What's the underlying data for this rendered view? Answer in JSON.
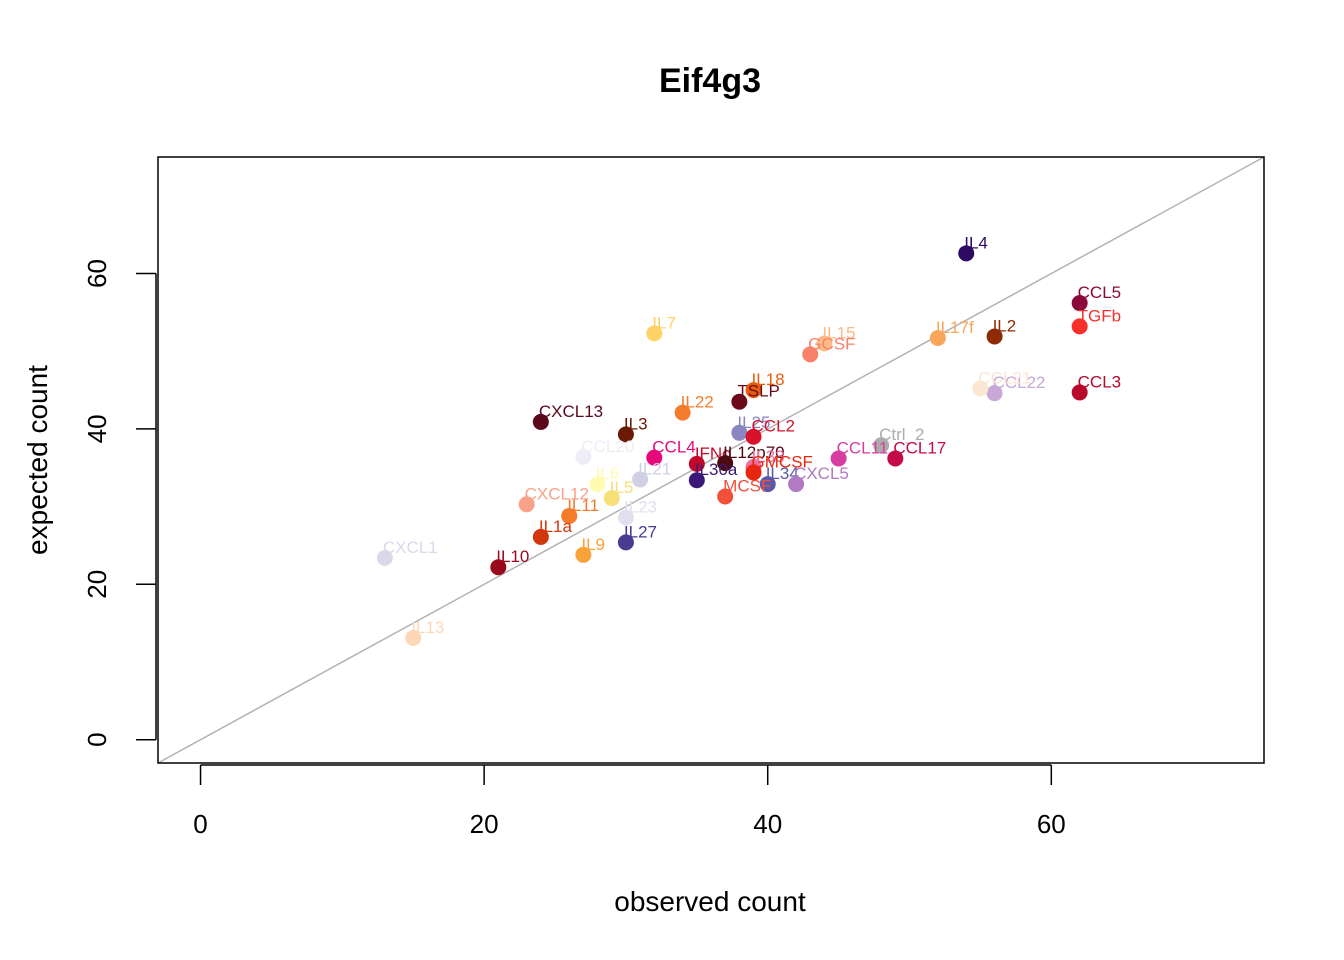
{
  "chart_data": {
    "type": "scatter",
    "title": "Eif4g3",
    "xlabel": "observed count",
    "ylabel": "expected count",
    "xlim": [
      -3,
      75
    ],
    "ylim": [
      -3,
      75
    ],
    "x_ticks": [
      0,
      20,
      40,
      60
    ],
    "y_ticks": [
      0,
      20,
      40,
      60
    ],
    "reference_line": "y = x",
    "reference_line_color": "#b3b3b3",
    "grid": false,
    "points": [
      {
        "label": "IL4",
        "x": 54,
        "y": 62.6,
        "color": "#2d0a63"
      },
      {
        "label": "CCL5",
        "x": 62,
        "y": 56.2,
        "color": "#8a0a3a"
      },
      {
        "label": "TGFb",
        "x": 62,
        "y": 53.2,
        "color": "#f8302a"
      },
      {
        "label": "IL2",
        "x": 56,
        "y": 51.9,
        "color": "#8e2a06"
      },
      {
        "label": "IL17f",
        "x": 52,
        "y": 51.7,
        "color": "#f9a55a"
      },
      {
        "label": "IL7",
        "x": 32,
        "y": 52.3,
        "color": "#fed267"
      },
      {
        "label": "IL15",
        "x": 44,
        "y": 51.0,
        "color": "#fcbb87"
      },
      {
        "label": "GCSF",
        "x": 43,
        "y": 49.6,
        "color": "#f98169"
      },
      {
        "label": "CCL22",
        "x": 56,
        "y": 44.6,
        "color": "#c7a8d6"
      },
      {
        "label": "CCL21",
        "x": 55,
        "y": 45.2,
        "color": "#fbe6d2"
      },
      {
        "label": "CCL3",
        "x": 62,
        "y": 44.7,
        "color": "#b8082c"
      },
      {
        "label": "IL18",
        "x": 39,
        "y": 45.0,
        "color": "#e85d0b"
      },
      {
        "label": "TSLP",
        "x": 38,
        "y": 43.5,
        "color": "#6a0a1b"
      },
      {
        "label": "IL22",
        "x": 34,
        "y": 42.1,
        "color": "#f47c2c"
      },
      {
        "label": "CXCL13",
        "x": 24,
        "y": 40.9,
        "color": "#5a0a1c"
      },
      {
        "label": "IL3",
        "x": 30,
        "y": 39.3,
        "color": "#6b1a06"
      },
      {
        "label": "IL25",
        "x": 38,
        "y": 39.5,
        "color": "#8a86c2"
      },
      {
        "label": "CCL2",
        "x": 39,
        "y": 39.0,
        "color": "#d8122a"
      },
      {
        "label": "Ctrl_2",
        "x": 48,
        "y": 37.9,
        "color": "#acacac"
      },
      {
        "label": "CCL17",
        "x": 49,
        "y": 36.2,
        "color": "#c50a4a"
      },
      {
        "label": "CCL11",
        "x": 45,
        "y": 36.2,
        "color": "#d63ea0"
      },
      {
        "label": "CCL20",
        "x": 27,
        "y": 36.4,
        "color": "#efedf5"
      },
      {
        "label": "CCL4",
        "x": 32,
        "y": 36.3,
        "color": "#e8087a"
      },
      {
        "label": "IFNg",
        "x": 35,
        "y": 35.5,
        "color": "#c2082a"
      },
      {
        "label": "IL12p70",
        "x": 37,
        "y": 35.6,
        "color": "#4a0a10"
      },
      {
        "label": "IL33",
        "x": 39,
        "y": 35.1,
        "color": "#ee6ea0"
      },
      {
        "label": "GMCSF",
        "x": 39,
        "y": 34.4,
        "color": "#e8250e"
      },
      {
        "label": "IL6",
        "x": 28,
        "y": 32.9,
        "color": "#fffbb0"
      },
      {
        "label": "IL5",
        "x": 29,
        "y": 31.1,
        "color": "#f5e07a"
      },
      {
        "label": "IL21",
        "x": 31,
        "y": 33.5,
        "color": "#cfd0e6"
      },
      {
        "label": "IL30a",
        "x": 35,
        "y": 33.4,
        "color": "#3a1a78"
      },
      {
        "label": "IL34",
        "x": 40,
        "y": 32.9,
        "color": "#5c5aa8"
      },
      {
        "label": "CXCL5",
        "x": 42,
        "y": 32.9,
        "color": "#b27ac2"
      },
      {
        "label": "MCSF",
        "x": 37,
        "y": 31.3,
        "color": "#f2503a"
      },
      {
        "label": "CXCL12",
        "x": 23,
        "y": 30.3,
        "color": "#f9a28a"
      },
      {
        "label": "IL11",
        "x": 26,
        "y": 28.8,
        "color": "#f57a2a"
      },
      {
        "label": "IL23",
        "x": 30,
        "y": 28.6,
        "color": "#e2e0ee"
      },
      {
        "label": "IL1a",
        "x": 24,
        "y": 26.1,
        "color": "#d3360a"
      },
      {
        "label": "IL27",
        "x": 30,
        "y": 25.4,
        "color": "#4b3a92"
      },
      {
        "label": "IL9",
        "x": 27,
        "y": 23.8,
        "color": "#faa23a"
      },
      {
        "label": "CXCL1",
        "x": 13,
        "y": 23.4,
        "color": "#dcd8ea"
      },
      {
        "label": "IL10",
        "x": 21,
        "y": 22.2,
        "color": "#9a0a1a"
      },
      {
        "label": "IL13",
        "x": 15,
        "y": 13.1,
        "color": "#fdd8b8"
      }
    ]
  }
}
